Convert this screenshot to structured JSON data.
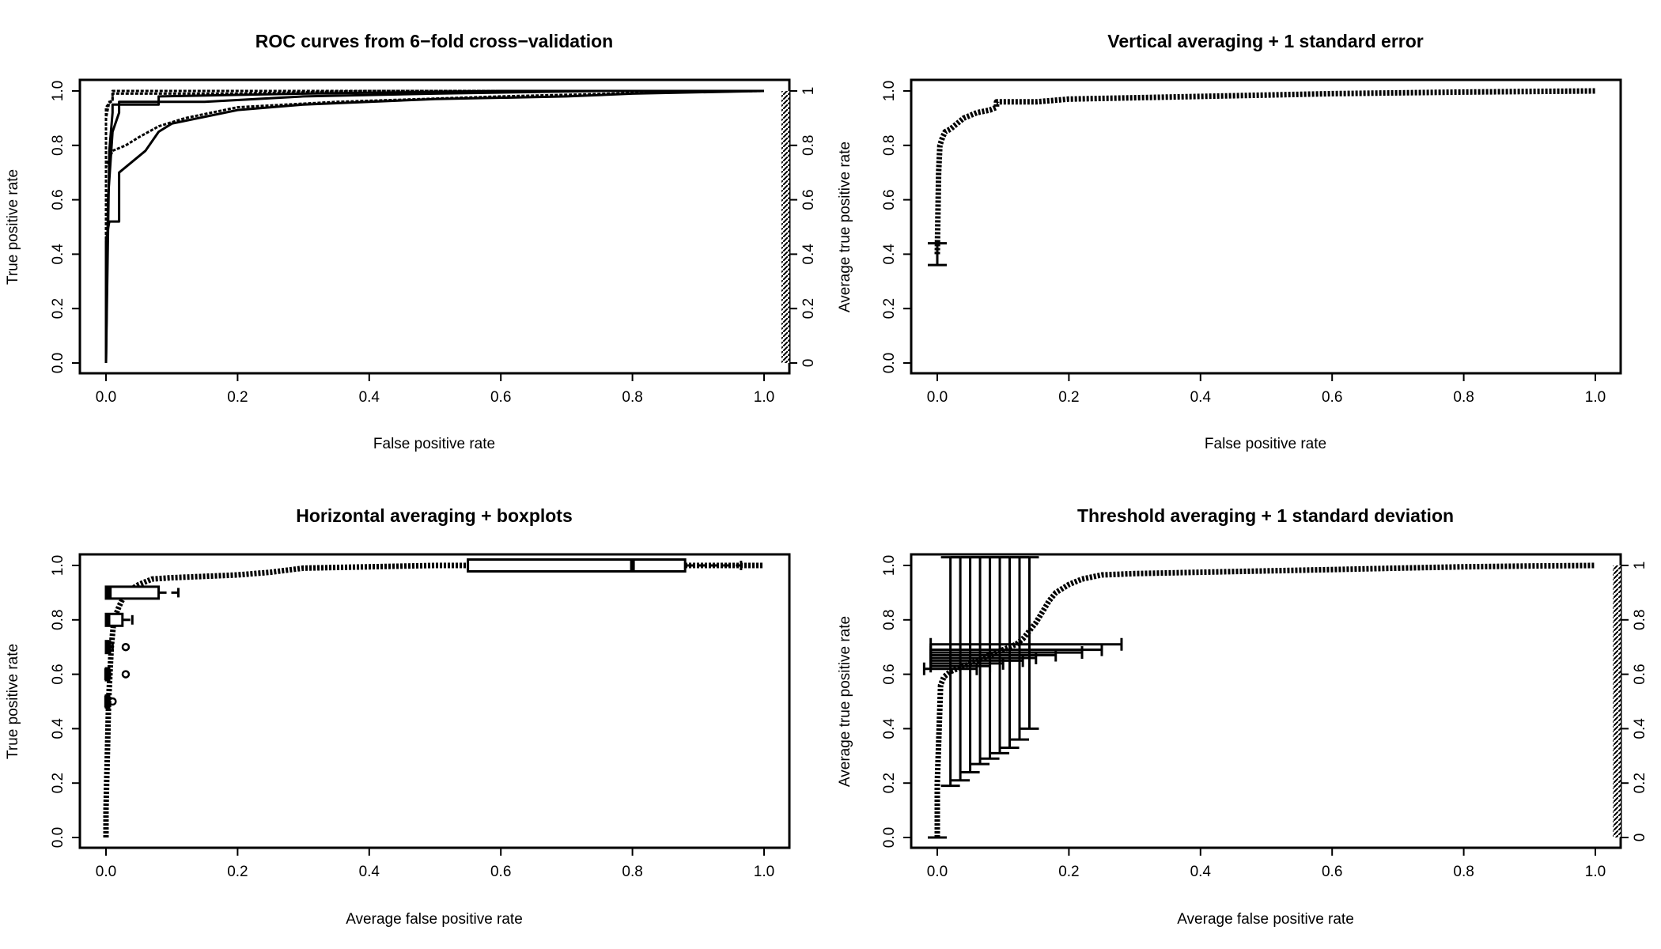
{
  "chart_data": [
    {
      "type": "line",
      "title": "ROC curves from 6−fold cross−validation",
      "xlabel": "False positive rate",
      "ylabel": "True positive rate",
      "ylabel_right": "Average true positive rate",
      "xlim": [
        0,
        1
      ],
      "ylim": [
        0,
        1
      ],
      "xticks": [
        "0.0",
        "0.2",
        "0.4",
        "0.6",
        "0.8",
        "1.0"
      ],
      "yticks": [
        "0.0",
        "0.2",
        "0.4",
        "0.6",
        "0.8",
        "1.0"
      ],
      "yticks_right": [
        "0",
        "0.2",
        "0.4",
        "0.6",
        "0.8",
        "1"
      ],
      "series": [
        {
          "x": [
            0,
            0,
            0.005,
            0.005,
            0.012,
            0.012,
            0.02,
            0.02,
            0.06,
            0.08,
            0.1,
            0.14,
            0.2,
            0.3,
            0.5,
            0.7,
            0.8,
            1.0
          ],
          "y": [
            0,
            0.45,
            0.52,
            0.52,
            0.52,
            0.52,
            0.52,
            0.7,
            0.78,
            0.85,
            0.88,
            0.9,
            0.93,
            0.95,
            0.97,
            0.98,
            0.99,
            1.0
          ]
        },
        {
          "x": [
            0,
            0,
            0.01,
            0.03,
            0.05,
            0.08,
            0.12,
            0.2,
            0.35,
            0.6,
            0.85,
            1.0
          ],
          "y": [
            0,
            0.72,
            0.78,
            0.8,
            0.83,
            0.87,
            0.9,
            0.94,
            0.96,
            0.98,
            0.995,
            1.0
          ]
        },
        {
          "x": [
            0,
            0.005,
            0.01,
            0.01,
            0.06,
            0.08,
            0.08,
            0.3,
            0.6,
            1.0
          ],
          "y": [
            0,
            0.78,
            0.92,
            0.95,
            0.95,
            0.95,
            0.98,
            0.99,
            1.0,
            1.0
          ]
        },
        {
          "x": [
            0,
            0,
            0.005,
            0.01,
            0.01,
            0.1,
            0.2,
            0.5,
            1.0
          ],
          "y": [
            0,
            0.9,
            0.96,
            0.96,
            1.0,
            1.0,
            1.0,
            1.0,
            1.0
          ]
        },
        {
          "x": [
            0,
            0.003,
            0.01,
            0.02,
            0.02,
            0.15,
            0.3,
            0.5,
            0.75,
            1.0
          ],
          "y": [
            0,
            0.6,
            0.85,
            0.92,
            0.96,
            0.96,
            0.98,
            0.99,
            1.0,
            1.0
          ]
        },
        {
          "x": [
            0,
            0,
            0.01,
            0.01,
            0.1,
            0.2,
            0.4,
            0.6,
            1.0
          ],
          "y": [
            0,
            0.94,
            0.97,
            0.99,
            0.99,
            0.99,
            1.0,
            1.0,
            1.0
          ]
        }
      ]
    },
    {
      "type": "line",
      "title": "Vertical averaging + 1 standard error",
      "xlabel": "False positive rate",
      "ylabel": "Average true positive rate",
      "xlim": [
        0,
        1
      ],
      "ylim": [
        0,
        1
      ],
      "xticks": [
        "0.0",
        "0.2",
        "0.4",
        "0.6",
        "0.8",
        "1.0"
      ],
      "yticks": [
        "0.0",
        "0.2",
        "0.4",
        "0.6",
        "0.8",
        "1.0"
      ],
      "series": [
        {
          "x": [
            0,
            0.002,
            0.004,
            0.008,
            0.012,
            0.02,
            0.03,
            0.04,
            0.05,
            0.06,
            0.08,
            0.09,
            0.09,
            0.15,
            0.2,
            0.3,
            0.4,
            0.5,
            0.6,
            0.7,
            0.8,
            0.9,
            1.0
          ],
          "y": [
            0.4,
            0.7,
            0.8,
            0.83,
            0.85,
            0.86,
            0.88,
            0.9,
            0.91,
            0.92,
            0.93,
            0.94,
            0.96,
            0.96,
            0.97,
            0.975,
            0.98,
            0.985,
            0.99,
            0.993,
            0.996,
            0.998,
            1.0
          ]
        }
      ],
      "error_bars": [
        {
          "x": 0,
          "low": 0.36,
          "high": 0.44
        }
      ]
    },
    {
      "type": "line",
      "title": "Horizontal averaging + boxplots",
      "xlabel": "Average false positive rate",
      "ylabel": "True positive rate",
      "xlim": [
        0,
        1
      ],
      "ylim": [
        0,
        1
      ],
      "xticks": [
        "0.0",
        "0.2",
        "0.4",
        "0.6",
        "0.8",
        "1.0"
      ],
      "yticks": [
        "0.0",
        "0.2",
        "0.4",
        "0.6",
        "0.8",
        "1.0"
      ],
      "series": [
        {
          "x": [
            0,
            0,
            0.001,
            0.002,
            0.003,
            0.004,
            0.006,
            0.008,
            0.012,
            0.02,
            0.03,
            0.05,
            0.07,
            0.1,
            0.15,
            0.2,
            0.25,
            0.3,
            0.4,
            0.5,
            0.6,
            0.7,
            0.8,
            0.9,
            1.0
          ],
          "y": [
            0,
            0.1,
            0.2,
            0.3,
            0.4,
            0.5,
            0.6,
            0.7,
            0.8,
            0.85,
            0.9,
            0.93,
            0.95,
            0.955,
            0.96,
            0.965,
            0.975,
            0.99,
            0.995,
            1.0,
            1.0,
            1.0,
            1.0,
            1.0,
            1.0
          ]
        }
      ],
      "boxplots": [
        {
          "y": 1.0,
          "whisker_low": 0.55,
          "q1": 0.55,
          "median": 0.8,
          "q3": 0.88,
          "whisker_high": 0.965,
          "outliers": []
        },
        {
          "y": 0.9,
          "whisker_low": 0,
          "q1": 0,
          "median": 0.005,
          "q3": 0.08,
          "whisker_high": 0.11,
          "outliers": []
        },
        {
          "y": 0.8,
          "whisker_low": 0,
          "q1": 0,
          "median": 0.003,
          "q3": 0.025,
          "whisker_high": 0.04,
          "outliers": []
        },
        {
          "y": 0.7,
          "whisker_low": 0,
          "q1": 0,
          "median": 0.002,
          "q3": 0.006,
          "whisker_high": 0.01,
          "outliers": [
            0.03
          ]
        },
        {
          "y": 0.6,
          "whisker_low": 0,
          "q1": 0,
          "median": 0.001,
          "q3": 0.004,
          "whisker_high": 0.006,
          "outliers": [
            0.03
          ]
        },
        {
          "y": 0.5,
          "whisker_low": 0,
          "q1": 0,
          "median": 0.001,
          "q3": 0.002,
          "whisker_high": 0.003,
          "outliers": [
            0.01
          ]
        }
      ]
    },
    {
      "type": "line",
      "title": "Threshold averaging + 1 standard deviation",
      "xlabel": "Average false positive rate",
      "ylabel": "Average true positive rate",
      "xlim": [
        0,
        1
      ],
      "ylim": [
        0,
        1
      ],
      "xticks": [
        "0.0",
        "0.2",
        "0.4",
        "0.6",
        "0.8",
        "1.0"
      ],
      "yticks": [
        "0.0",
        "0.2",
        "0.4",
        "0.6",
        "0.8",
        "1.0"
      ],
      "yticks_right": [
        "0",
        "0.2",
        "0.4",
        "0.6",
        "0.8",
        "1"
      ],
      "series": [
        {
          "x": [
            0,
            0,
            0.005,
            0.01,
            0.02,
            0.03,
            0.04,
            0.05,
            0.06,
            0.07,
            0.08,
            0.09,
            0.1,
            0.11,
            0.12,
            0.13,
            0.14,
            0.15,
            0.16,
            0.17,
            0.18,
            0.2,
            0.22,
            0.25,
            0.3,
            0.4,
            0.5,
            0.6,
            0.7,
            0.8,
            0.9,
            1.0
          ],
          "y": [
            0,
            0.2,
            0.56,
            0.59,
            0.61,
            0.62,
            0.63,
            0.64,
            0.65,
            0.66,
            0.67,
            0.68,
            0.69,
            0.7,
            0.71,
            0.73,
            0.76,
            0.79,
            0.83,
            0.87,
            0.9,
            0.93,
            0.95,
            0.965,
            0.97,
            0.975,
            0.98,
            0.985,
            0.99,
            0.995,
            0.998,
            1.0
          ]
        }
      ],
      "vertical_error_bars": [
        {
          "x": 0.0,
          "low": 0.0,
          "high": 0.0
        },
        {
          "x": 0.02,
          "low": 0.19,
          "high": 1.03
        },
        {
          "x": 0.035,
          "low": 0.21,
          "high": 1.03
        },
        {
          "x": 0.05,
          "low": 0.24,
          "high": 1.03
        },
        {
          "x": 0.065,
          "low": 0.27,
          "high": 1.03
        },
        {
          "x": 0.08,
          "low": 0.29,
          "high": 1.03
        },
        {
          "x": 0.095,
          "low": 0.31,
          "high": 1.03
        },
        {
          "x": 0.11,
          "low": 0.33,
          "high": 1.03
        },
        {
          "x": 0.125,
          "low": 0.36,
          "high": 1.03
        },
        {
          "x": 0.14,
          "low": 0.4,
          "high": 1.03
        }
      ],
      "horizontal_error_bars": [
        {
          "y": 0.71,
          "low": -0.01,
          "high": 0.28
        },
        {
          "y": 0.69,
          "low": -0.01,
          "high": 0.25
        },
        {
          "y": 0.68,
          "low": -0.01,
          "high": 0.22
        },
        {
          "y": 0.67,
          "low": -0.01,
          "high": 0.18
        },
        {
          "y": 0.66,
          "low": -0.01,
          "high": 0.15
        },
        {
          "y": 0.65,
          "low": -0.01,
          "high": 0.13
        },
        {
          "y": 0.64,
          "low": -0.01,
          "high": 0.1
        },
        {
          "y": 0.63,
          "low": -0.01,
          "high": 0.08
        },
        {
          "y": 0.62,
          "low": -0.02,
          "high": 0.06
        }
      ]
    }
  ]
}
